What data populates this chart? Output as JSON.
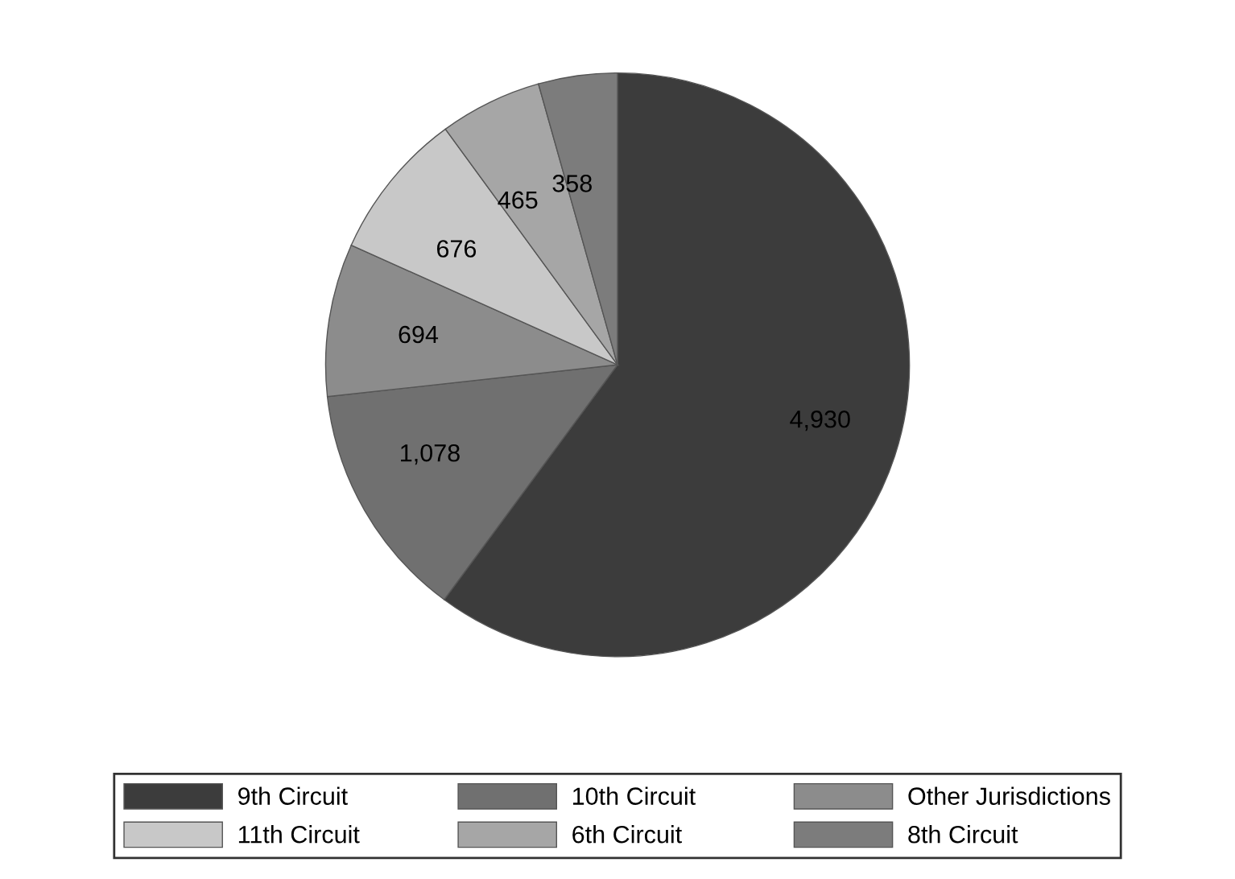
{
  "chart_data": {
    "type": "pie",
    "categories": [
      "9th Circuit",
      "10th Circuit",
      "Other Jurisdictions",
      "11th Circuit",
      "6th Circuit",
      "8th Circuit"
    ],
    "values": [
      4930,
      1078,
      694,
      676,
      465,
      358
    ],
    "colors": [
      "#3c3c3c",
      "#707070",
      "#8c8c8c",
      "#c8c8c8",
      "#a6a6a6",
      "#7c7c7c"
    ],
    "value_labels": [
      "4,930",
      "1,078",
      "694",
      "676",
      "465",
      "358"
    ],
    "legend": "bottom"
  }
}
